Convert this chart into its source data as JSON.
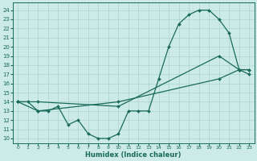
{
  "title": "",
  "xlabel": "Humidex (Indice chaleur)",
  "bg_color": "#cceae7",
  "grid_color": "#aad4d0",
  "line_color": "#1a6b5a",
  "marker": "D",
  "markersize": 2.0,
  "linewidth": 0.9,
  "xlim": [
    -0.5,
    23.5
  ],
  "ylim": [
    9.5,
    24.8
  ],
  "xticks": [
    0,
    1,
    2,
    3,
    4,
    5,
    6,
    7,
    8,
    9,
    10,
    11,
    12,
    13,
    14,
    15,
    16,
    17,
    18,
    19,
    20,
    21,
    22,
    23
  ],
  "yticks": [
    10,
    11,
    12,
    13,
    14,
    15,
    16,
    17,
    18,
    19,
    20,
    21,
    22,
    23,
    24
  ],
  "line1_x": [
    0,
    1,
    2,
    3,
    4,
    5,
    6,
    7,
    8,
    9,
    10,
    11,
    12,
    13,
    14,
    15,
    16,
    17,
    18,
    19,
    20,
    21,
    22,
    23
  ],
  "line1_y": [
    14,
    14,
    13,
    13,
    13.5,
    11.5,
    12,
    10.5,
    10,
    10,
    10.5,
    13,
    13,
    13,
    16.5,
    20,
    22.5,
    23.5,
    24,
    24,
    23,
    21.5,
    17.5,
    17.5
  ],
  "line2_x": [
    0,
    2,
    10,
    20,
    22,
    23
  ],
  "line2_y": [
    14,
    14,
    13.5,
    19,
    17.5,
    17
  ],
  "line3_x": [
    0,
    2,
    10,
    20,
    22,
    23
  ],
  "line3_y": [
    14,
    13,
    14,
    16.5,
    17.5,
    17.5
  ]
}
